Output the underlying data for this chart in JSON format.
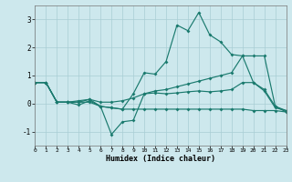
{
  "xlabel": "Humidex (Indice chaleur)",
  "xlim": [
    0,
    23
  ],
  "ylim": [
    -1.5,
    3.5
  ],
  "yticks": [
    -1,
    0,
    1,
    2,
    3
  ],
  "xticks": [
    0,
    1,
    2,
    3,
    4,
    5,
    6,
    7,
    8,
    9,
    10,
    11,
    12,
    13,
    14,
    15,
    16,
    17,
    18,
    19,
    20,
    21,
    22,
    23
  ],
  "bg_color": "#cde8ed",
  "line_color": "#1a7a6e",
  "grid_color": "#a8cdd4",
  "lines": [
    {
      "x": [
        0,
        1,
        2,
        3,
        4,
        5,
        6,
        7,
        8,
        9,
        10,
        11,
        12,
        13,
        14,
        15,
        16,
        17,
        18,
        19,
        20,
        21,
        22,
        23
      ],
      "y": [
        0.75,
        0.75,
        0.05,
        0.05,
        -0.05,
        0.1,
        -0.1,
        -0.15,
        -0.2,
        0.35,
        1.1,
        1.05,
        1.5,
        2.8,
        2.6,
        3.25,
        2.45,
        2.2,
        1.75,
        1.7,
        0.75,
        0.5,
        -0.1,
        -0.25
      ]
    },
    {
      "x": [
        0,
        1,
        2,
        3,
        4,
        5,
        6,
        7,
        8,
        9,
        10,
        11,
        12,
        13,
        14,
        15,
        16,
        17,
        18,
        19,
        20,
        21,
        22,
        23
      ],
      "y": [
        0.75,
        0.75,
        0.05,
        0.05,
        0.05,
        0.15,
        -0.1,
        -1.1,
        -0.65,
        -0.6,
        0.35,
        0.38,
        0.35,
        0.38,
        0.42,
        0.45,
        0.42,
        0.45,
        0.5,
        0.75,
        0.75,
        0.45,
        -0.15,
        -0.25
      ]
    },
    {
      "x": [
        0,
        1,
        2,
        3,
        4,
        5,
        6,
        7,
        8,
        9,
        10,
        11,
        12,
        13,
        14,
        15,
        16,
        17,
        18,
        19,
        20,
        21,
        22,
        23
      ],
      "y": [
        0.75,
        0.75,
        0.05,
        0.05,
        0.05,
        0.05,
        -0.1,
        -0.15,
        -0.2,
        -0.2,
        -0.2,
        -0.2,
        -0.2,
        -0.2,
        -0.2,
        -0.2,
        -0.2,
        -0.2,
        -0.2,
        -0.2,
        -0.25,
        -0.25,
        -0.25,
        -0.3
      ]
    },
    {
      "x": [
        0,
        1,
        2,
        3,
        4,
        5,
        6,
        7,
        8,
        9,
        10,
        11,
        12,
        13,
        14,
        15,
        16,
        17,
        18,
        19,
        20,
        21,
        22,
        23
      ],
      "y": [
        0.75,
        0.75,
        0.05,
        0.05,
        0.1,
        0.15,
        0.05,
        0.05,
        0.1,
        0.2,
        0.35,
        0.45,
        0.5,
        0.6,
        0.7,
        0.8,
        0.9,
        1.0,
        1.1,
        1.7,
        1.7,
        1.7,
        -0.1,
        -0.3
      ]
    }
  ]
}
